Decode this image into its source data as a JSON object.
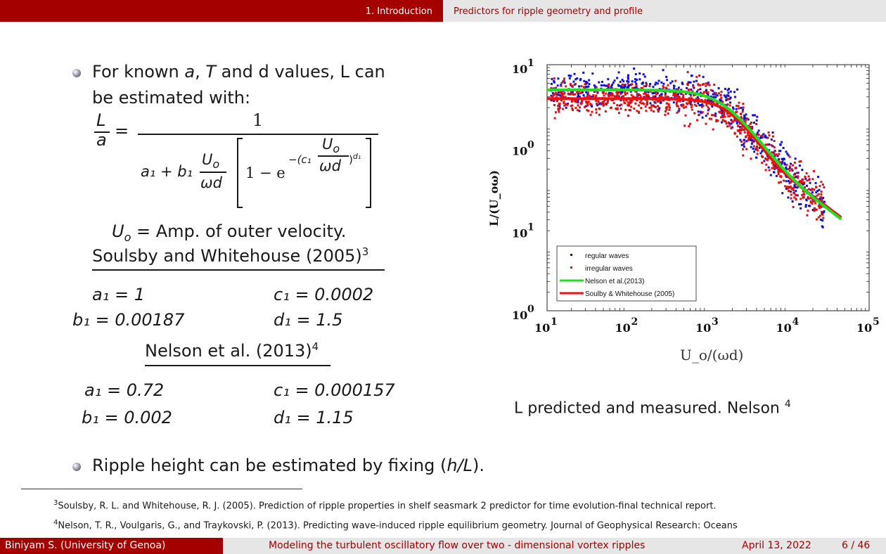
{
  "header": {
    "section": "1. Introduction",
    "subsection": "Predictors for ripple geometry and profile"
  },
  "content": {
    "bullet1_line1_pre": "For known ",
    "bullet1_a": "a",
    "bullet1_comma": ", ",
    "bullet1_T": "T",
    "bullet1_line1_post": " and d values, L can",
    "bullet1_line2": "be estimated with:",
    "eq_L": "L",
    "eq_a": "a",
    "eq_eq": "=",
    "eq_one": "1",
    "eq_a1": "a₁ + b₁",
    "eq_Uo": "U",
    "eq_o": "o",
    "eq_wd": "ωd",
    "eq_onem": "1 − e",
    "eq_exp": "−(c₁",
    "eq_exp_Uo": "U",
    "eq_exp_o": "o",
    "eq_exp_wd": "ωd",
    "eq_exp_d1": ")",
    "eq_exp_d1sup": "d₁",
    "uo_def_U": "U",
    "uo_def_o": "o",
    "uo_def_text": " = Amp.  of outer velocity.",
    "soulsby_title": "Soulsby and Whitehouse (2005)",
    "soulsby_ref": "3",
    "s_a1": "a₁  =  1",
    "s_c1": "c₁    =    0.0002",
    "s_b1": "b₁  = 0.00187",
    "s_d1": "d₁ = 1.5",
    "nelson_title": "Nelson et al. (2013)",
    "nelson_ref": "4",
    "n_a1": "a₁  = 0.72",
    "n_c1": "c₁    =    0.000157",
    "n_b1": "b₁  = 0.002",
    "n_d1": "d₁ = 1.15",
    "bullet2_pre": "Ripple height can be estimated by fixing (",
    "bullet2_hl": "h/L",
    "bullet2_post": ").",
    "caption": "L predicted and measured. Nelson",
    "caption_ref": "4"
  },
  "footnotes": [
    {
      "num": "3",
      "text": "Soulsby, R. L. and Whitehouse, R. J. (2005).   Prediction of ripple properties in shelf seasmark 2 predictor for time evolution-final technical report."
    },
    {
      "num": "4",
      "text": "Nelson, T. R., Voulgaris, G., and Traykovski, P. (2013).   Predicting wave-induced ripple equilibrium geometry.   Journal of Geophysical Research:   Oceans"
    }
  ],
  "footer": {
    "author": "Biniyam S.  (University of Genoa)",
    "title": "Modeling the turbulent oscillatory flow over two - dimensional vortex ripples",
    "date": "April 13, 2022",
    "page": "6 / 46"
  },
  "colors": {
    "brand": "#a50000",
    "bar_gray": "#e6e6e6",
    "regular": "#1010d0",
    "irregular": "#e01010",
    "nelson_curve": "#22dd22",
    "soulsby_curve": "#ee1111"
  },
  "chart_data": {
    "type": "scatter",
    "xlabel": "U_o/(ωd)",
    "ylabel": "L/(U_oω)",
    "xscale": "log",
    "yscale": "log",
    "xlim": [
      10,
      100000
    ],
    "ylim": [
      1,
      10000
    ],
    "x_ticks": [
      {
        "base": "10",
        "exp": "1"
      },
      {
        "base": "10",
        "exp": "2"
      },
      {
        "base": "10",
        "exp": "3"
      },
      {
        "base": "10",
        "exp": "4"
      },
      {
        "base": "10",
        "exp": "5"
      }
    ],
    "y_ticks": [
      {
        "base": "10",
        "exp": "0"
      },
      {
        "base": "10",
        "exp": "1"
      },
      {
        "base": "10",
        "exp": "0"
      },
      {
        "base": "10",
        "exp": "1"
      }
    ],
    "legend_position": "bottom-left",
    "series": [
      {
        "name": "regular waves",
        "kind": "points"
      },
      {
        "name": "irregular waves",
        "kind": "points"
      },
      {
        "name": "Nelson et al.(2013)",
        "kind": "line",
        "params": {
          "a1": 0.72,
          "b1": 0.002,
          "c1": 0.000157,
          "d1": 1.15
        }
      },
      {
        "name": "Soulby & Whitehouse (2005)",
        "kind": "line",
        "params": {
          "a1": 1,
          "b1": 0.00187,
          "c1": 0.0002,
          "d1": 1.5
        }
      }
    ],
    "curve_x_range": [
      10,
      45000
    ]
  }
}
